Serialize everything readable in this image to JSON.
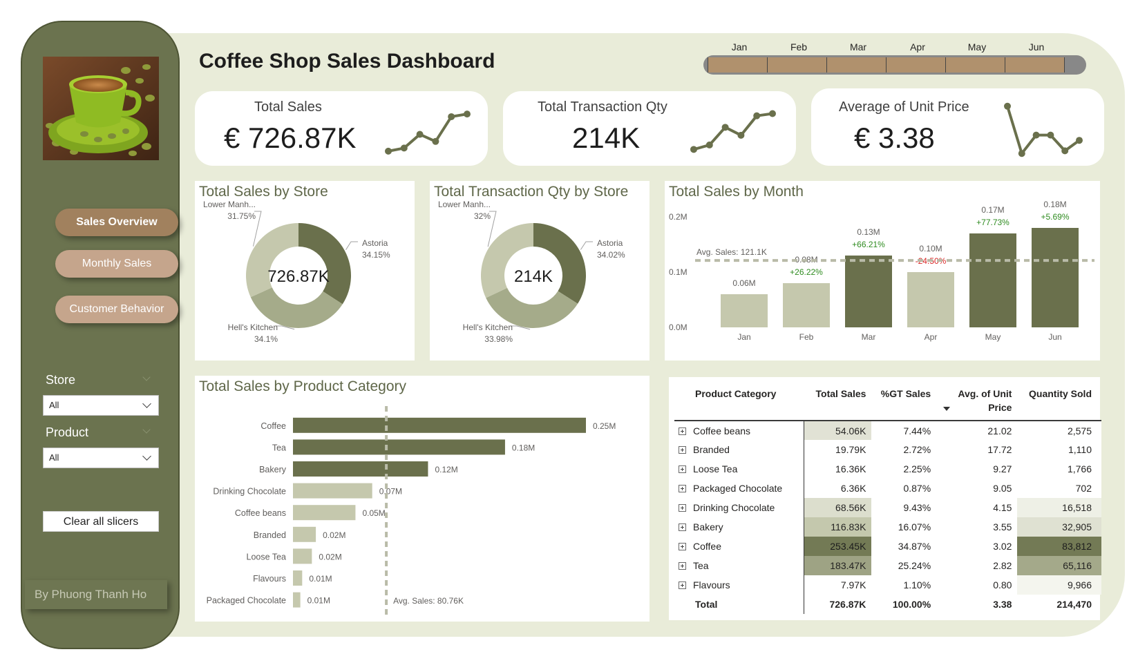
{
  "dashboard_title": "Coffee Shop Sales Dashboard",
  "author": "By Phuong Thanh Ho",
  "nav": [
    {
      "label": "Sales Overview",
      "active": true
    },
    {
      "label": "Monthly Sales",
      "active": false
    },
    {
      "label": "Customer Behavior",
      "active": false
    }
  ],
  "slicers": {
    "store": {
      "label": "Store",
      "value": "All"
    },
    "product": {
      "label": "Product",
      "value": "All"
    },
    "clear_label": "Clear all slicers"
  },
  "month_slicer": [
    "Jan",
    "Feb",
    "Mar",
    "Apr",
    "May",
    "Jun"
  ],
  "kpis": [
    {
      "title": "Total Sales",
      "value": "€ 726.87K",
      "trend": [
        0.08,
        0.15,
        0.46,
        0.3,
        0.86,
        0.92
      ]
    },
    {
      "title": "Total Transaction Qty",
      "value": "214K",
      "trend": [
        0.12,
        0.22,
        0.62,
        0.44,
        0.88,
        0.93
      ]
    },
    {
      "title": "Average of Unit Price",
      "value": "€ 3.38",
      "trend": [
        0.95,
        0.05,
        0.4,
        0.4,
        0.1,
        0.3
      ]
    }
  ],
  "colors": {
    "dark": "#6a704c",
    "mid": "#a5ab8a",
    "light": "#c5c8ad",
    "positive": "#2e8b1f",
    "negative": "#d92323"
  },
  "chart_data": [
    {
      "type": "pie",
      "title": "Total Sales by Store",
      "center_label": "726.87K",
      "labels": [
        "Astoria",
        "Hell's Kitchen",
        "Lower Manh..."
      ],
      "values": [
        34.15,
        34.1,
        31.75
      ],
      "value_labels": [
        "34.15%",
        "34.1%",
        "31.75%"
      ]
    },
    {
      "type": "pie",
      "title": "Total Transaction Qty by Store",
      "center_label": "214K",
      "labels": [
        "Astoria",
        "Hell's Kitchen",
        "Lower Manh..."
      ],
      "values": [
        34.02,
        33.98,
        32
      ],
      "value_labels": [
        "34.02%",
        "33.98%",
        "32%"
      ]
    },
    {
      "type": "bar",
      "title": "Total Sales by Month",
      "categories": [
        "Jan",
        "Feb",
        "Mar",
        "Apr",
        "May",
        "Jun"
      ],
      "values": [
        0.06,
        0.08,
        0.13,
        0.1,
        0.17,
        0.18
      ],
      "data_labels": [
        "0.06M",
        "0.08M",
        "0.13M",
        "0.10M",
        "0.17M",
        "0.18M"
      ],
      "mom_labels": [
        "",
        "+26.22%",
        "+66.21%",
        "-24.50%",
        "+77.73%",
        "+5.69%"
      ],
      "above_avg": [
        false,
        false,
        true,
        false,
        true,
        true
      ],
      "avg_value": 0.1211,
      "avg_label": "Avg. Sales: 121.1K",
      "yticks": [
        "0.0M",
        "0.1M",
        "0.2M"
      ],
      "ylim": [
        0,
        0.2
      ]
    },
    {
      "type": "bar",
      "orientation": "horizontal",
      "title": "Total Sales by Product Category",
      "categories": [
        "Coffee",
        "Tea",
        "Bakery",
        "Drinking Chocolate",
        "Coffee beans",
        "Branded",
        "Loose Tea",
        "Flavours",
        "Packaged Chocolate"
      ],
      "values": [
        0.25345,
        0.18347,
        0.11683,
        0.06856,
        0.05406,
        0.01979,
        0.01636,
        0.00797,
        0.00636
      ],
      "data_labels": [
        "0.25M",
        "0.18M",
        "0.12M",
        "0.07M",
        "0.05M",
        "0.02M",
        "0.02M",
        "0.01M",
        "0.01M"
      ],
      "above_avg": [
        true,
        true,
        true,
        false,
        false,
        false,
        false,
        false,
        false
      ],
      "avg_value": 0.08076,
      "avg_label": "Avg. Sales: 80.76K"
    }
  ],
  "matrix": {
    "headers": [
      "Product Category",
      "Total Sales",
      "%GT Sales",
      "Avg. of Unit Price",
      "Quantity Sold"
    ],
    "rows": [
      {
        "category": "Coffee beans",
        "sales": "54.06K",
        "pct": "7.44%",
        "price": "21.02",
        "qty": "2,575",
        "sales_shade": "#e1e2d5",
        "qty_shade": "#ffffff"
      },
      {
        "category": "Branded",
        "sales": "19.79K",
        "pct": "2.72%",
        "price": "17.72",
        "qty": "1,110",
        "sales_shade": "#ffffff",
        "qty_shade": "#ffffff"
      },
      {
        "category": "Loose Tea",
        "sales": "16.36K",
        "pct": "2.25%",
        "price": "9.27",
        "qty": "1,766",
        "sales_shade": "#ffffff",
        "qty_shade": "#ffffff"
      },
      {
        "category": "Packaged Chocolate",
        "sales": "6.36K",
        "pct": "0.87%",
        "price": "9.05",
        "qty": "702",
        "sales_shade": "#ffffff",
        "qty_shade": "#ffffff"
      },
      {
        "category": "Drinking Chocolate",
        "sales": "68.56K",
        "pct": "9.43%",
        "price": "4.15",
        "qty": "16,518",
        "sales_shade": "#dcdecd",
        "qty_shade": "#eef0e6"
      },
      {
        "category": "Bakery",
        "sales": "116.83K",
        "pct": "16.07%",
        "price": "3.55",
        "qty": "32,905",
        "sales_shade": "#c4c8ad",
        "qty_shade": "#dfe1d2"
      },
      {
        "category": "Coffee",
        "sales": "253.45K",
        "pct": "34.87%",
        "price": "3.02",
        "qty": "83,812",
        "sales_shade": "#737a55",
        "qty_shade": "#737a55"
      },
      {
        "category": "Tea",
        "sales": "183.47K",
        "pct": "25.24%",
        "price": "2.82",
        "qty": "65,116",
        "sales_shade": "#9ea384",
        "qty_shade": "#a4a98a"
      },
      {
        "category": "Flavours",
        "sales": "7.97K",
        "pct": "1.10%",
        "price": "0.80",
        "qty": "9,966",
        "sales_shade": "#ffffff",
        "qty_shade": "#f4f5ee"
      }
    ],
    "total": {
      "category": "Total",
      "sales": "726.87K",
      "pct": "100.00%",
      "price": "3.38",
      "qty": "214,470"
    }
  }
}
